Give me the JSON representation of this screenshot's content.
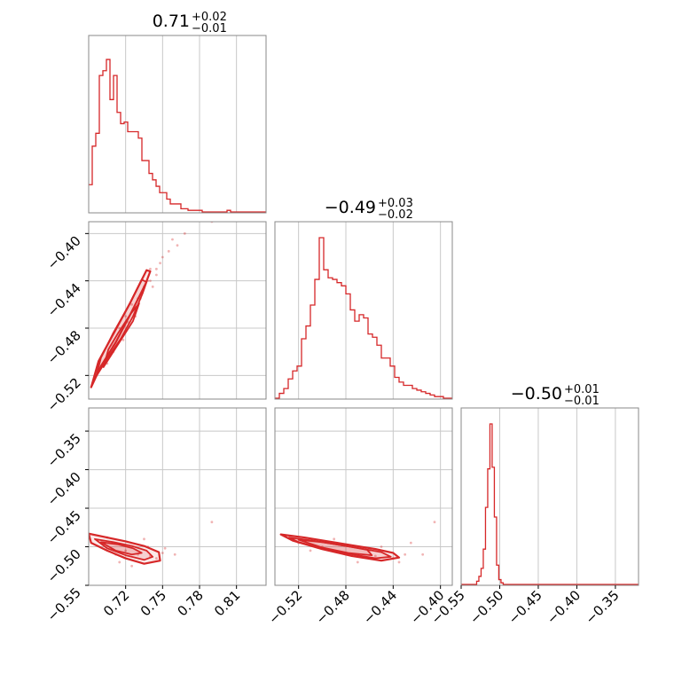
{
  "chart_data": {
    "type": "corner",
    "series_color": "#d62728",
    "grid": true,
    "parameters": [
      {
        "title": {
          "median": "0.71",
          "upper": "+0.02",
          "lower": "−0.01"
        },
        "range": [
          0.69,
          0.834
        ],
        "ticks": [
          0.72,
          0.75,
          0.78,
          0.81
        ],
        "tick_labels": [
          "0.72",
          "0.75",
          "0.78",
          "0.81"
        ]
      },
      {
        "title": {
          "median": "−0.49",
          "upper": "+0.03",
          "lower": "−0.02"
        },
        "range": [
          -0.54,
          -0.39
        ],
        "ticks": [
          -0.52,
          -0.48,
          -0.44,
          -0.4
        ],
        "tick_labels": [
          "−0.52",
          "−0.48",
          "−0.44",
          "−0.40"
        ]
      },
      {
        "title": {
          "median": "−0.50",
          "upper": "+0.01",
          "lower": "−0.01"
        },
        "range": [
          -0.55,
          -0.32
        ],
        "ticks": [
          -0.55,
          -0.5,
          -0.45,
          -0.4,
          -0.35
        ],
        "tick_labels": [
          "−0.55",
          "−0.50",
          "−0.45",
          "−0.40",
          "−0.35"
        ]
      }
    ],
    "histograms": [
      {
        "bin_start": 0.69,
        "bin_width": 0.00288,
        "counts": [
          0.17,
          0.41,
          0.49,
          0.85,
          0.88,
          0.95,
          0.7,
          0.85,
          0.62,
          0.55,
          0.56,
          0.5,
          0.5,
          0.5,
          0.46,
          0.32,
          0.32,
          0.24,
          0.2,
          0.16,
          0.12,
          0.12,
          0.08,
          0.05,
          0.05,
          0.05,
          0.02,
          0.02,
          0.01,
          0.01,
          0.01,
          0.01,
          0,
          0,
          0,
          0,
          0,
          0,
          0,
          0.01,
          0,
          0,
          0,
          0,
          0,
          0,
          0,
          0,
          0,
          0
        ]
      },
      {
        "bin_start": -0.54,
        "bin_width": 0.00375,
        "counts": [
          0,
          0.03,
          0.06,
          0.12,
          0.17,
          0.2,
          0.37,
          0.45,
          0.58,
          0.74,
          1.0,
          0.8,
          0.75,
          0.74,
          0.72,
          0.7,
          0.65,
          0.55,
          0.48,
          0.52,
          0.5,
          0.4,
          0.38,
          0.33,
          0.25,
          0.25,
          0.2,
          0.13,
          0.1,
          0.08,
          0.08,
          0.06,
          0.05,
          0.04,
          0.03,
          0.02,
          0.01,
          0.01,
          0,
          0
        ]
      },
      {
        "bin_start": -0.55,
        "bin_width": 0.00287,
        "counts": [
          0,
          0,
          0,
          0,
          0,
          0,
          0,
          0.02,
          0.05,
          0.1,
          0.22,
          0.48,
          0.72,
          1.0,
          0.73,
          0.42,
          0.12,
          0.03,
          0.01,
          0,
          0,
          0,
          0,
          0,
          0,
          0,
          0,
          0,
          0,
          0,
          0,
          0,
          0,
          0,
          0,
          0,
          0,
          0,
          0,
          0,
          0,
          0,
          0,
          0,
          0,
          0,
          0,
          0,
          0,
          0,
          0,
          0,
          0,
          0,
          0,
          0,
          0,
          0,
          0,
          0,
          0,
          0,
          0,
          0,
          0,
          0,
          0,
          0,
          0,
          0,
          0,
          0,
          0,
          0,
          0,
          0,
          0,
          0,
          0,
          0
        ]
      }
    ],
    "pairs": [
      {
        "x_param": 0,
        "y_param": 1,
        "scatter": {
          "x": [
            0.72,
            0.73,
            0.71,
            0.74,
            0.725,
            0.735,
            0.745,
            0.75,
            0.715,
            0.705,
            0.74,
            0.755,
            0.728,
            0.738,
            0.762,
            0.748,
            0.732,
            0.718,
            0.742,
            0.79,
            0.758,
            0.745,
            0.71,
            0.722,
            0.768
          ],
          "y": [
            -0.47,
            -0.455,
            -0.495,
            -0.44,
            -0.46,
            -0.445,
            -0.435,
            -0.42,
            -0.48,
            -0.51,
            -0.43,
            -0.415,
            -0.47,
            -0.44,
            -0.41,
            -0.425,
            -0.455,
            -0.49,
            -0.445,
            -0.39,
            -0.405,
            -0.43,
            -0.5,
            -0.475,
            -0.4
          ]
        },
        "contours": [
          {
            "x": [
              0.692,
              0.7,
              0.712,
              0.724,
              0.736,
              0.74,
              0.737,
              0.724,
              0.71,
              0.698,
              0.692
            ],
            "y": [
              -0.53,
              -0.512,
              -0.492,
              -0.468,
              -0.443,
              -0.432,
              -0.431,
              -0.458,
              -0.485,
              -0.508,
              -0.53
            ]
          },
          {
            "x": [
              0.696,
              0.705,
              0.716,
              0.726,
              0.734,
              0.737,
              0.733,
              0.722,
              0.71,
              0.7,
              0.696
            ],
            "y": [
              -0.521,
              -0.506,
              -0.489,
              -0.47,
              -0.45,
              -0.441,
              -0.439,
              -0.462,
              -0.484,
              -0.505,
              -0.521
            ]
          },
          {
            "x": [
              0.702,
              0.71,
              0.718,
              0.726,
              0.731,
              0.724,
              0.714,
              0.706,
              0.702
            ],
            "y": [
              -0.513,
              -0.5,
              -0.487,
              -0.474,
              -0.459,
              -0.468,
              -0.484,
              -0.498,
              -0.513
            ]
          }
        ]
      },
      {
        "x_param": 0,
        "y_param": 2,
        "scatter": {
          "x": [
            0.71,
            0.72,
            0.73,
            0.74,
            0.75,
            0.715,
            0.735,
            0.745,
            0.705,
            0.725,
            0.752,
            0.79,
            0.76,
            0.738,
            0.712
          ],
          "y": [
            -0.495,
            -0.505,
            -0.51,
            -0.512,
            -0.508,
            -0.52,
            -0.49,
            -0.515,
            -0.488,
            -0.525,
            -0.502,
            -0.468,
            -0.51,
            -0.5,
            -0.51
          ]
        },
        "contours": [
          {
            "x": [
              0.69,
              0.705,
              0.72,
              0.735,
              0.747,
              0.748,
              0.735,
              0.72,
              0.705,
              0.692,
              0.69
            ],
            "y": [
              -0.483,
              -0.488,
              -0.493,
              -0.499,
              -0.507,
              -0.518,
              -0.522,
              -0.515,
              -0.505,
              -0.495,
              -0.483
            ]
          },
          {
            "x": [
              0.695,
              0.71,
              0.725,
              0.737,
              0.742,
              0.735,
              0.72,
              0.705,
              0.695
            ],
            "y": [
              -0.49,
              -0.494,
              -0.499,
              -0.505,
              -0.513,
              -0.517,
              -0.511,
              -0.502,
              -0.49
            ]
          },
          {
            "x": [
              0.7,
              0.714,
              0.726,
              0.733,
              0.725,
              0.712,
              0.7
            ],
            "y": [
              -0.494,
              -0.497,
              -0.502,
              -0.508,
              -0.51,
              -0.505,
              -0.494
            ]
          }
        ]
      },
      {
        "x_param": 1,
        "y_param": 2,
        "scatter": {
          "x": [
            -0.52,
            -0.5,
            -0.48,
            -0.46,
            -0.44,
            -0.43,
            -0.425,
            -0.47,
            -0.49,
            -0.45,
            -0.415,
            -0.405,
            -0.51,
            -0.435,
            -0.455
          ],
          "y": [
            -0.495,
            -0.5,
            -0.51,
            -0.505,
            -0.515,
            -0.51,
            -0.495,
            -0.52,
            -0.49,
            -0.5,
            -0.51,
            -0.468,
            -0.505,
            -0.52,
            -0.512
          ]
        },
        "contours": [
          {
            "x": [
              -0.535,
              -0.515,
              -0.495,
              -0.475,
              -0.455,
              -0.44,
              -0.435,
              -0.45,
              -0.475,
              -0.5,
              -0.525,
              -0.535
            ],
            "y": [
              -0.484,
              -0.488,
              -0.493,
              -0.498,
              -0.503,
              -0.508,
              -0.514,
              -0.518,
              -0.512,
              -0.503,
              -0.492,
              -0.484
            ]
          },
          {
            "x": [
              -0.528,
              -0.508,
              -0.488,
              -0.468,
              -0.45,
              -0.442,
              -0.455,
              -0.478,
              -0.5,
              -0.52,
              -0.528
            ],
            "y": [
              -0.488,
              -0.492,
              -0.497,
              -0.502,
              -0.507,
              -0.513,
              -0.515,
              -0.509,
              -0.502,
              -0.494,
              -0.488
            ]
          },
          {
            "x": [
              -0.52,
              -0.5,
              -0.48,
              -0.462,
              -0.458,
              -0.478,
              -0.5,
              -0.52
            ],
            "y": [
              -0.491,
              -0.494,
              -0.499,
              -0.504,
              -0.511,
              -0.508,
              -0.501,
              -0.491
            ]
          }
        ]
      }
    ]
  }
}
